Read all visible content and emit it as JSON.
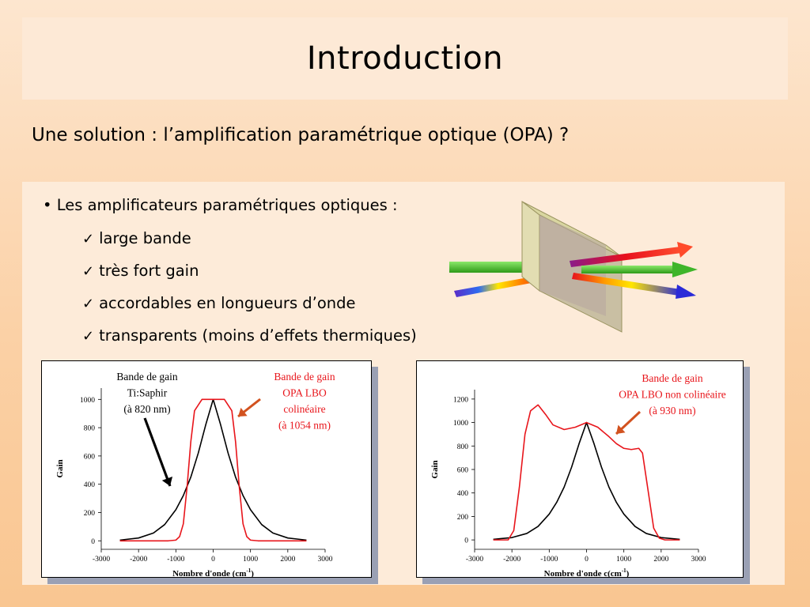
{
  "slide": {
    "title": "Introduction",
    "subtitle": "Une solution : l’amplification paramétrique optique (OPA) ?"
  },
  "bullets": {
    "main": "• Les amplificateurs paramétriques optiques :",
    "items": [
      "large bande",
      "très fort gain",
      "accordables en longueurs d’onde",
      "transparents (moins d’effets thermiques)"
    ],
    "check_glyph": "✓"
  },
  "colors": {
    "black_curve": "#000000",
    "red_curve": "#e8151b",
    "arrow_red": "#d2521f"
  },
  "chart_data": [
    {
      "type": "line",
      "xlabel": "Nombre d'onde (cm",
      "xlabel_sup": "-1",
      "xlabel_end": ")",
      "ylabel": "Gain",
      "xlim": [
        -3000,
        3000
      ],
      "ylim": [
        -60,
        1080
      ],
      "xticks": [
        -3000,
        -2000,
        -1000,
        0,
        1000,
        2000,
        3000
      ],
      "yticks": [
        0,
        200,
        400,
        600,
        800,
        1000
      ],
      "annotations": [
        {
          "lines": [
            "Bande de gain",
            "Ti:Saphir",
            "(à 820 nm)"
          ],
          "color": "black"
        },
        {
          "lines": [
            "Bande de gain",
            "OPA LBO",
            "colinéaire",
            "(à 1054 nm)"
          ],
          "color": "red"
        }
      ],
      "series": [
        {
          "color": "black",
          "x": [
            -2500,
            -2000,
            -1600,
            -1300,
            -1000,
            -800,
            -600,
            -400,
            -200,
            0,
            200,
            400,
            600,
            800,
            1000,
            1300,
            1600,
            2000,
            2500
          ],
          "y": [
            5,
            20,
            55,
            115,
            220,
            320,
            450,
            620,
            820,
            1000,
            820,
            620,
            450,
            320,
            220,
            115,
            55,
            20,
            5
          ]
        },
        {
          "color": "red",
          "x": [
            -2500,
            -1200,
            -1000,
            -900,
            -800,
            -700,
            -600,
            -500,
            -300,
            0,
            300,
            500,
            600,
            700,
            800,
            900,
            1000,
            1200,
            2500
          ],
          "y": [
            0,
            0,
            5,
            30,
            120,
            380,
            700,
            920,
            1000,
            1000,
            1000,
            920,
            700,
            380,
            120,
            30,
            5,
            0,
            0
          ]
        }
      ]
    },
    {
      "type": "line",
      "xlabel": "Nombre d'onde c(cm",
      "xlabel_sup": "-1",
      "xlabel_end": ")",
      "ylabel": "Gain",
      "xlim": [
        -3000,
        3000
      ],
      "ylim": [
        -80,
        1280
      ],
      "xticks": [
        -3000,
        -2000,
        -1000,
        0,
        1000,
        2000,
        3000
      ],
      "yticks": [
        0,
        200,
        400,
        600,
        800,
        1000,
        1200
      ],
      "annotations": [
        {
          "lines": [
            "Bande de gain",
            "OPA LBO non colinéaire",
            "(à 930 nm)"
          ],
          "color": "red"
        }
      ],
      "series": [
        {
          "color": "black",
          "x": [
            -2500,
            -2000,
            -1600,
            -1300,
            -1000,
            -800,
            -600,
            -400,
            -200,
            0,
            200,
            400,
            600,
            800,
            1000,
            1300,
            1600,
            2000,
            2500
          ],
          "y": [
            5,
            20,
            55,
            115,
            220,
            320,
            450,
            620,
            820,
            1000,
            820,
            620,
            450,
            320,
            220,
            115,
            55,
            20,
            5
          ]
        },
        {
          "color": "red",
          "x": [
            -2500,
            -2100,
            -1950,
            -1800,
            -1650,
            -1500,
            -1300,
            -1100,
            -900,
            -600,
            -300,
            0,
            300,
            600,
            800,
            1000,
            1200,
            1400,
            1500,
            1650,
            1800,
            1950,
            2100,
            2500
          ],
          "y": [
            0,
            0,
            80,
            450,
            900,
            1100,
            1150,
            1070,
            980,
            940,
            960,
            1000,
            960,
            880,
            820,
            780,
            770,
            780,
            740,
            420,
            100,
            15,
            0,
            0
          ]
        }
      ]
    }
  ]
}
